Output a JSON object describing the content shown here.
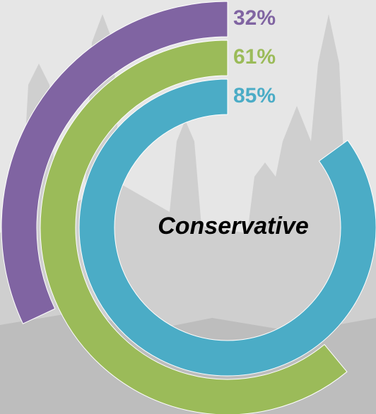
{
  "chart_data": {
    "type": "radial-bar",
    "title": "Conservative",
    "values": [
      32,
      61,
      85
    ],
    "value_labels": [
      "32%",
      "61%",
      "85%"
    ],
    "colors": [
      "#8064a2",
      "#9bbb59",
      "#4bacc6"
    ]
  }
}
